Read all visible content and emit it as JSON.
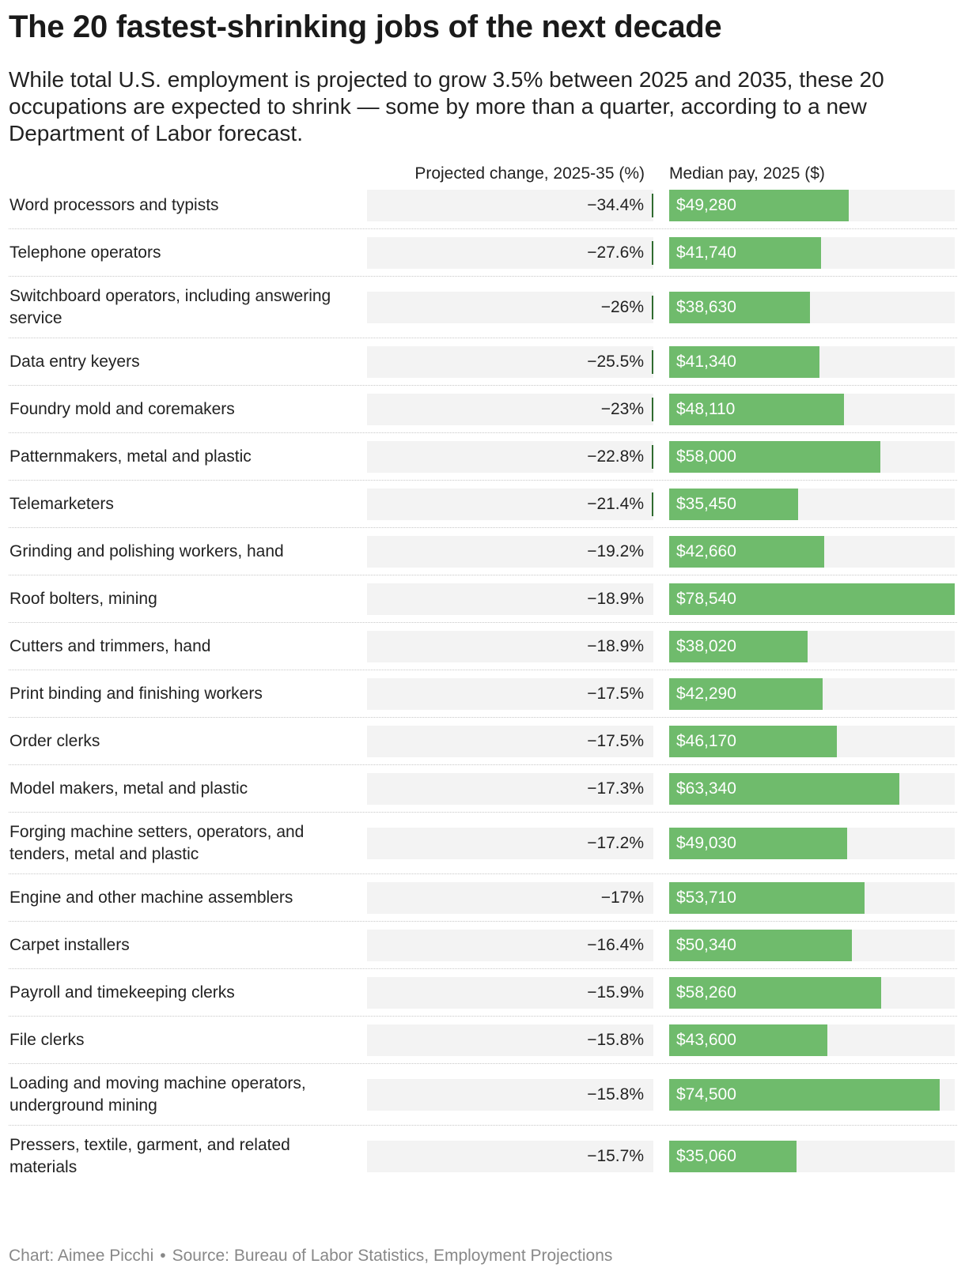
{
  "title": "The 20 fastest-shrinking jobs of the next decade",
  "subtitle": "While total U.S. employment is projected to grow 3.5% between 2025 and 2035, these 20 occupations are expected to shrink — some by more than a quarter, according to a new Department of Labor forecast.",
  "footer": {
    "credit": "Chart: Aimee Picchi",
    "separator": "•",
    "source": "Source: Bureau of Labor Statistics, Employment Projections"
  },
  "colors": {
    "bar": "#6fbb6c",
    "track": "#f3f3f3",
    "tick": "#2f6b2f"
  },
  "chart_data": {
    "type": "table",
    "columns": [
      "Projected change, 2025-35 (%)",
      "Median pay, 2025 ($)"
    ],
    "pay_max": 78540,
    "tick_threshold": -20,
    "rows": [
      {
        "occupation": "Word processors and typists",
        "change": -34.4,
        "change_label": "−34.4%",
        "pay": 49280,
        "pay_label": "$49,280"
      },
      {
        "occupation": "Telephone operators",
        "change": -27.6,
        "change_label": "−27.6%",
        "pay": 41740,
        "pay_label": "$41,740"
      },
      {
        "occupation": "Switchboard operators, including answering service",
        "change": -26,
        "change_label": "−26%",
        "pay": 38630,
        "pay_label": "$38,630"
      },
      {
        "occupation": "Data entry keyers",
        "change": -25.5,
        "change_label": "−25.5%",
        "pay": 41340,
        "pay_label": "$41,340"
      },
      {
        "occupation": "Foundry mold and coremakers",
        "change": -23,
        "change_label": "−23%",
        "pay": 48110,
        "pay_label": "$48,110"
      },
      {
        "occupation": "Patternmakers, metal and plastic",
        "change": -22.8,
        "change_label": "−22.8%",
        "pay": 58000,
        "pay_label": "$58,000"
      },
      {
        "occupation": "Telemarketers",
        "change": -21.4,
        "change_label": "−21.4%",
        "pay": 35450,
        "pay_label": "$35,450"
      },
      {
        "occupation": "Grinding and polishing workers, hand",
        "change": -19.2,
        "change_label": "−19.2%",
        "pay": 42660,
        "pay_label": "$42,660"
      },
      {
        "occupation": "Roof bolters, mining",
        "change": -18.9,
        "change_label": "−18.9%",
        "pay": 78540,
        "pay_label": "$78,540"
      },
      {
        "occupation": "Cutters and trimmers, hand",
        "change": -18.9,
        "change_label": "−18.9%",
        "pay": 38020,
        "pay_label": "$38,020"
      },
      {
        "occupation": "Print binding and finishing workers",
        "change": -17.5,
        "change_label": "−17.5%",
        "pay": 42290,
        "pay_label": "$42,290"
      },
      {
        "occupation": "Order clerks",
        "change": -17.5,
        "change_label": "−17.5%",
        "pay": 46170,
        "pay_label": "$46,170"
      },
      {
        "occupation": "Model makers, metal and plastic",
        "change": -17.3,
        "change_label": "−17.3%",
        "pay": 63340,
        "pay_label": "$63,340"
      },
      {
        "occupation": "Forging machine setters, operators, and tenders, metal and plastic",
        "change": -17.2,
        "change_label": "−17.2%",
        "pay": 49030,
        "pay_label": "$49,030"
      },
      {
        "occupation": "Engine and other machine assemblers",
        "change": -17,
        "change_label": "−17%",
        "pay": 53710,
        "pay_label": "$53,710"
      },
      {
        "occupation": "Carpet installers",
        "change": -16.4,
        "change_label": "−16.4%",
        "pay": 50340,
        "pay_label": "$50,340"
      },
      {
        "occupation": "Payroll and timekeeping clerks",
        "change": -15.9,
        "change_label": "−15.9%",
        "pay": 58260,
        "pay_label": "$58,260"
      },
      {
        "occupation": "File clerks",
        "change": -15.8,
        "change_label": "−15.8%",
        "pay": 43600,
        "pay_label": "$43,600"
      },
      {
        "occupation": "Loading and moving machine operators, underground mining",
        "change": -15.8,
        "change_label": "−15.8%",
        "pay": 74500,
        "pay_label": "$74,500"
      },
      {
        "occupation": "Pressers, textile, garment, and related materials",
        "change": -15.7,
        "change_label": "−15.7%",
        "pay": 35060,
        "pay_label": "$35,060"
      }
    ]
  }
}
